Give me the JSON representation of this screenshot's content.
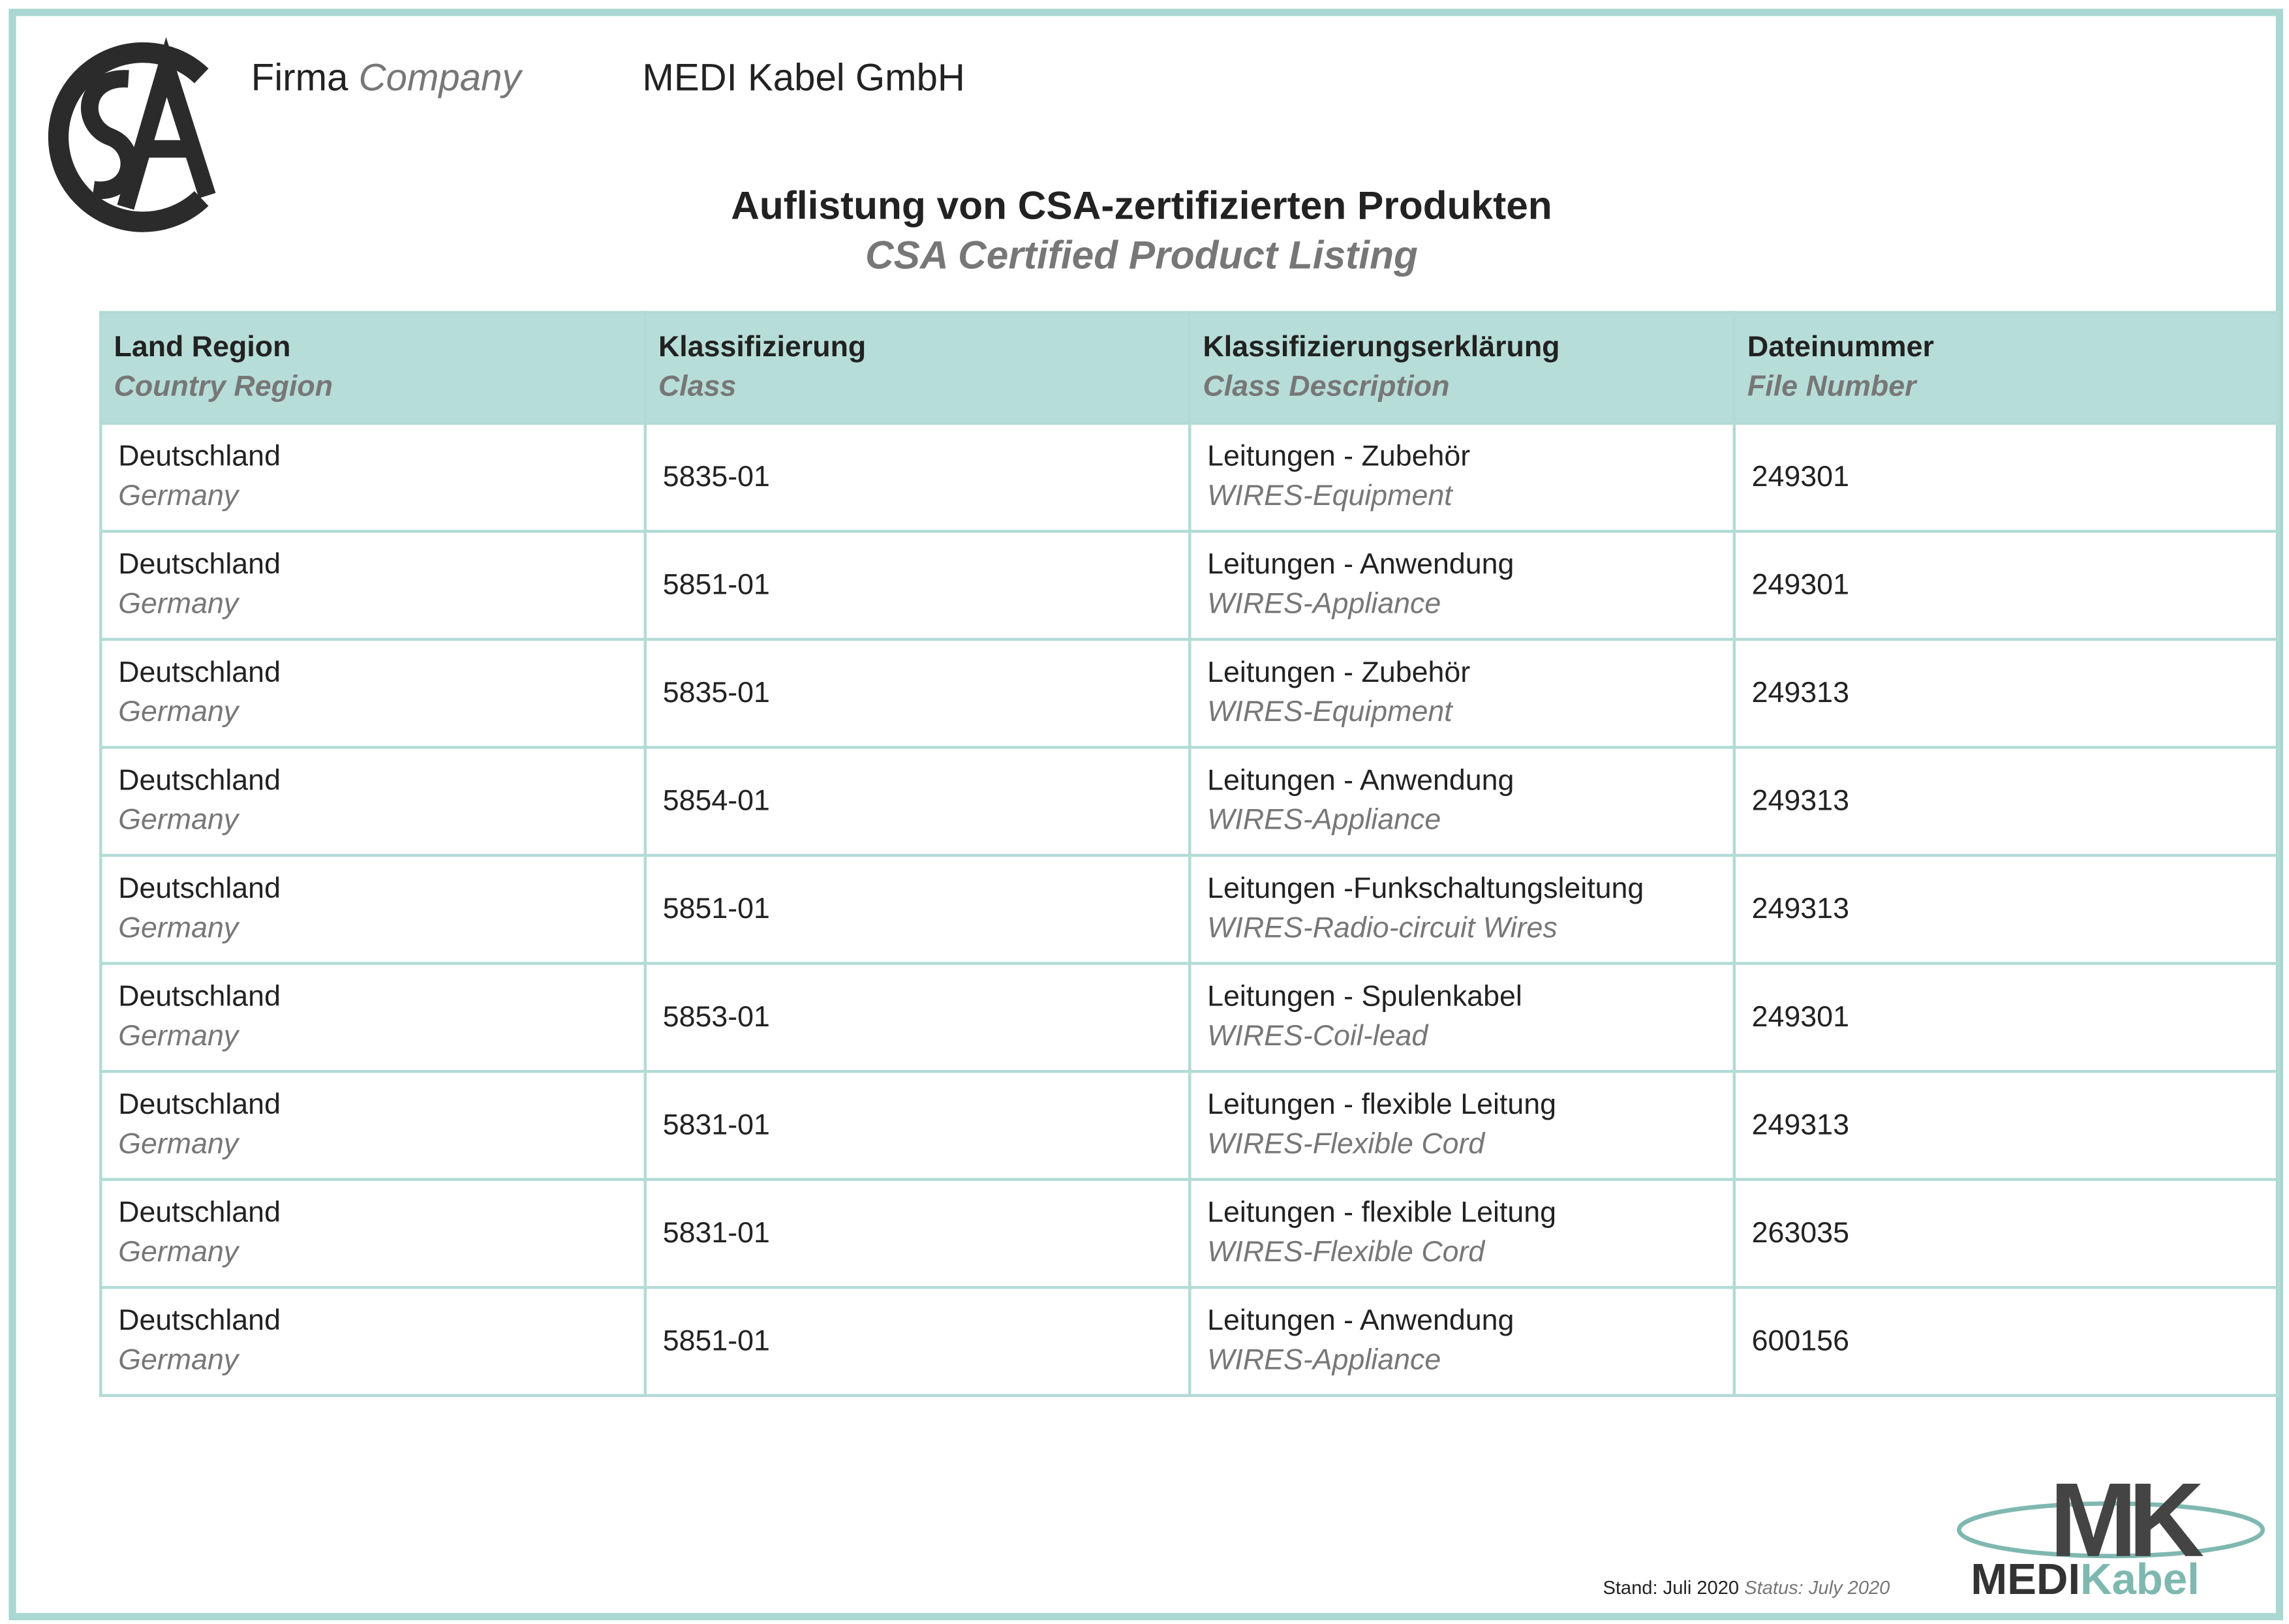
{
  "header": {
    "company_label": "Firma",
    "company_label_en": "Company",
    "company_name": "MEDI Kabel GmbH",
    "title": "Auflistung von CSA-zertifizierten Produkten",
    "subtitle": "CSA Certified Product Listing"
  },
  "table": {
    "columns": [
      {
        "de": "Land Region",
        "en": "Country Region"
      },
      {
        "de": "Klassifizierung",
        "en": "Class"
      },
      {
        "de": "Klassifizierungserklärung",
        "en": "Class Description"
      },
      {
        "de": "Dateinummer",
        "en": "File Number"
      }
    ],
    "rows": [
      {
        "region_de": "Deutschland",
        "region_en": "Germany",
        "class": "5835-01",
        "desc_de": "Leitungen - Zubehör",
        "desc_en": "WIRES-Equipment",
        "file": "249301"
      },
      {
        "region_de": "Deutschland",
        "region_en": "Germany",
        "class": "5851-01",
        "desc_de": "Leitungen - Anwendung",
        "desc_en": "WIRES-Appliance",
        "file": "249301"
      },
      {
        "region_de": "Deutschland",
        "region_en": "Germany",
        "class": "5835-01",
        "desc_de": "Leitungen - Zubehör",
        "desc_en": "WIRES-Equipment",
        "file": "249313"
      },
      {
        "region_de": "Deutschland",
        "region_en": "Germany",
        "class": "5854-01",
        "desc_de": "Leitungen - Anwendung",
        "desc_en": "WIRES-Appliance",
        "file": "249313"
      },
      {
        "region_de": "Deutschland",
        "region_en": "Germany",
        "class": "5851-01",
        "desc_de": "Leitungen -Funkschaltungsleitung",
        "desc_en": "WIRES-Radio-circuit Wires",
        "file": "249313"
      },
      {
        "region_de": "Deutschland",
        "region_en": "Germany",
        "class": "5853-01",
        "desc_de": "Leitungen - Spulenkabel",
        "desc_en": "WIRES-Coil-lead",
        "file": "249301"
      },
      {
        "region_de": "Deutschland",
        "region_en": "Germany",
        "class": "5831-01",
        "desc_de": "Leitungen - flexible Leitung",
        "desc_en": "WIRES-Flexible Cord",
        "file": "249313"
      },
      {
        "region_de": "Deutschland",
        "region_en": "Germany",
        "class": "5831-01",
        "desc_de": "Leitungen - flexible Leitung",
        "desc_en": "WIRES-Flexible Cord",
        "file": "263035"
      },
      {
        "region_de": "Deutschland",
        "region_en": "Germany",
        "class": "5851-01",
        "desc_de": "Leitungen - Anwendung",
        "desc_en": "WIRES-Appliance",
        "file": "600156"
      }
    ]
  },
  "footer": {
    "stand_label": "Stand:",
    "stand": "Juli 2020",
    "status_label": "Status:",
    "status": "July 2020",
    "logo_mark": "MK",
    "logo_medi": "MEDI",
    "logo_kabel": "Kabel"
  }
}
